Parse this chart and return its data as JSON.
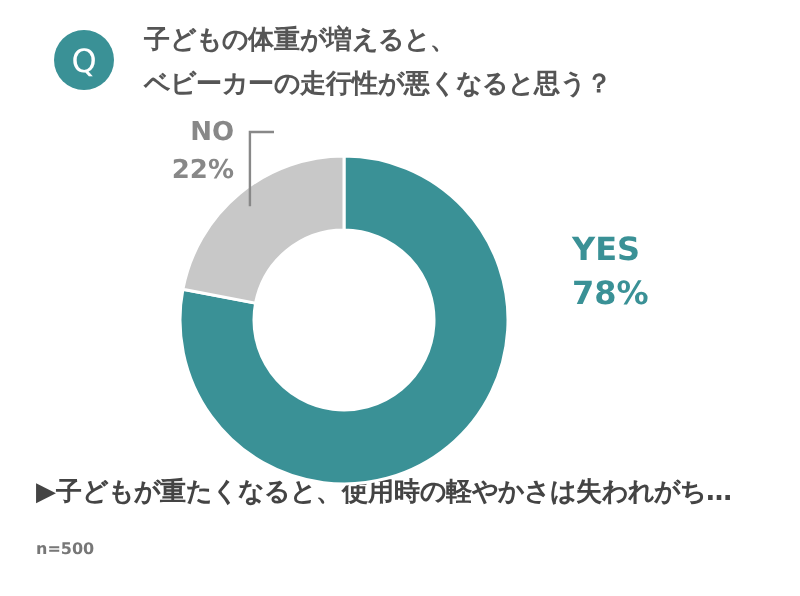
{
  "chart_data": {
    "type": "donut",
    "title": "子どもの体重が増えると、",
    "subtitle": "ベビーカーの走行性が悪くなると思う？",
    "categories": [
      "YES",
      "NO"
    ],
    "values": [
      78,
      22
    ],
    "colors": [
      "#3a9196",
      "#c8c8c8"
    ],
    "value_labels": [
      "78%",
      "22%"
    ],
    "annotations": [
      "Q",
      "▶子どもが重たくなると、使用時の軽やかさは失われがち…",
      "n=500"
    ]
  }
}
